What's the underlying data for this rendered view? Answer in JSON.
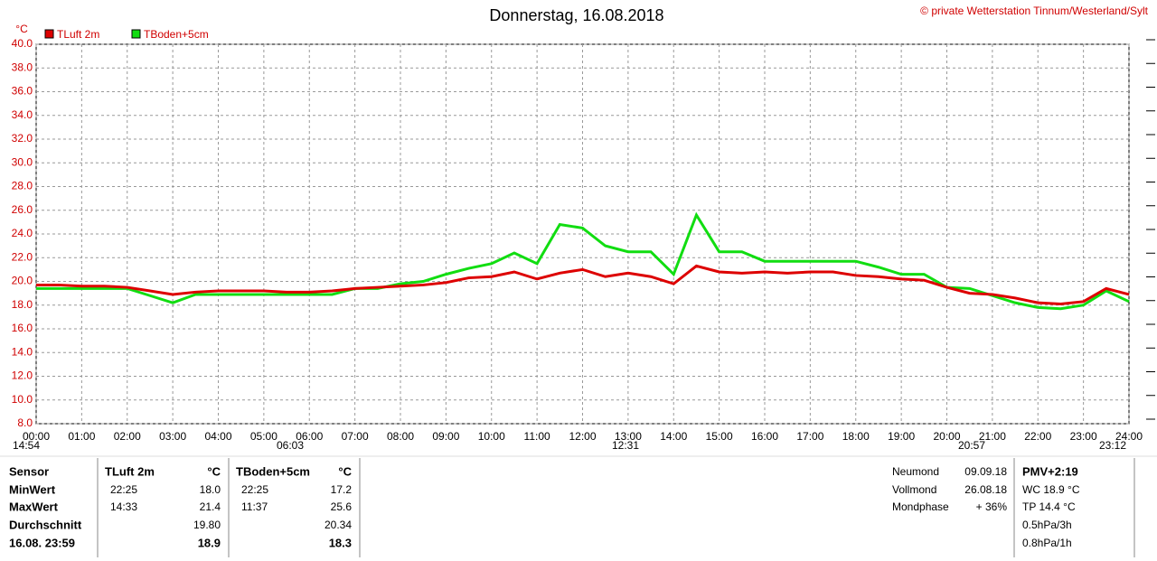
{
  "chart_data": {
    "type": "line",
    "title": "Donnerstag, 16.08.2018",
    "copyright": "© private Wetterstation Tinnum/Westerland/Sylt",
    "y_label": "°C",
    "x": [
      0,
      0.5,
      1,
      1.5,
      2,
      2.5,
      3,
      3.5,
      4,
      4.5,
      5,
      5.5,
      6,
      6.5,
      7,
      7.5,
      8,
      8.5,
      9,
      9.5,
      10,
      10.5,
      11,
      11.5,
      12,
      12.5,
      13,
      13.5,
      14,
      14.5,
      15,
      15.5,
      16,
      16.5,
      17,
      17.5,
      18,
      18.5,
      19,
      19.5,
      20,
      20.5,
      21,
      21.5,
      22,
      22.5,
      23,
      23.5,
      24
    ],
    "series": [
      {
        "name": "TLuft 2m",
        "color": "#dd0000",
        "values": [
          19.7,
          19.7,
          19.6,
          19.6,
          19.5,
          19.2,
          18.9,
          19.1,
          19.2,
          19.2,
          19.2,
          19.1,
          19.1,
          19.2,
          19.4,
          19.5,
          19.6,
          19.7,
          19.9,
          20.3,
          20.4,
          20.8,
          20.2,
          20.7,
          21.0,
          20.4,
          20.7,
          20.4,
          19.8,
          21.3,
          20.8,
          20.7,
          20.8,
          20.7,
          20.8,
          20.8,
          20.5,
          20.4,
          20.2,
          20.1,
          19.5,
          19.0,
          18.9,
          18.6,
          18.2,
          18.1,
          18.3,
          19.4,
          18.9
        ]
      },
      {
        "name": "TBoden+5cm",
        "color": "#11dd11",
        "values": [
          19.4,
          19.4,
          19.4,
          19.4,
          19.4,
          18.8,
          18.2,
          18.9,
          18.9,
          18.9,
          18.9,
          18.9,
          18.9,
          18.9,
          19.4,
          19.4,
          19.8,
          20.0,
          20.6,
          21.1,
          21.5,
          22.4,
          21.5,
          24.8,
          24.5,
          23.0,
          22.5,
          22.5,
          20.6,
          25.6,
          22.5,
          22.5,
          21.7,
          21.7,
          21.7,
          21.7,
          21.7,
          21.2,
          20.6,
          20.6,
          19.5,
          19.4,
          18.8,
          18.2,
          17.8,
          17.7,
          18.0,
          19.2,
          18.3
        ]
      }
    ],
    "xlim": [
      0,
      24
    ],
    "xticks": [
      {
        "value": 0,
        "label": "00:00"
      },
      {
        "value": 1,
        "label": "01:00"
      },
      {
        "value": 2,
        "label": "02:00"
      },
      {
        "value": 3,
        "label": "03:00"
      },
      {
        "value": 4,
        "label": "04:00"
      },
      {
        "value": 5,
        "label": "05:00"
      },
      {
        "value": 6,
        "label": "06:00"
      },
      {
        "value": 7,
        "label": "07:00"
      },
      {
        "value": 8,
        "label": "08:00"
      },
      {
        "value": 9,
        "label": "09:00"
      },
      {
        "value": 10,
        "label": "10:00"
      },
      {
        "value": 11,
        "label": "11:00"
      },
      {
        "value": 12,
        "label": "12:00"
      },
      {
        "value": 13,
        "label": "13:00"
      },
      {
        "value": 14,
        "label": "14:00"
      },
      {
        "value": 15,
        "label": "15:00"
      },
      {
        "value": 16,
        "label": "16:00"
      },
      {
        "value": 17,
        "label": "17:00"
      },
      {
        "value": 18,
        "label": "18:00"
      },
      {
        "value": 19,
        "label": "19:00"
      },
      {
        "value": 20,
        "label": "20:00"
      },
      {
        "value": 21,
        "label": "21:00"
      },
      {
        "value": 22,
        "label": "22:00"
      },
      {
        "value": 23,
        "label": "23:00"
      },
      {
        "value": 24,
        "label": "24:00"
      }
    ],
    "ylim": [
      8,
      40
    ],
    "yticks": [
      {
        "value": 8,
        "label": "8.0"
      },
      {
        "value": 10,
        "label": "10.0"
      },
      {
        "value": 12,
        "label": "12.0"
      },
      {
        "value": 14,
        "label": "14.0"
      },
      {
        "value": 16,
        "label": "16.0"
      },
      {
        "value": 18,
        "label": "18.0"
      },
      {
        "value": 20,
        "label": "20.0"
      },
      {
        "value": 22,
        "label": "22.0"
      },
      {
        "value": 24,
        "label": "24.0"
      },
      {
        "value": 26,
        "label": "26.0"
      },
      {
        "value": 28,
        "label": "28.0"
      },
      {
        "value": 30,
        "label": "30.0"
      },
      {
        "value": 32,
        "label": "32.0"
      },
      {
        "value": 34,
        "label": "34.0"
      },
      {
        "value": 36,
        "label": "36.0"
      },
      {
        "value": 38,
        "label": "38.0"
      },
      {
        "value": 40,
        "label": "40.0"
      }
    ],
    "grid": true,
    "annotations": [
      "14:54",
      "06:03",
      "12:31",
      "20:57",
      "23:12"
    ]
  },
  "table": {
    "labels": [
      "Sensor",
      "MinWert",
      "MaxWert",
      "Durchschnitt",
      "16.08. 23:59"
    ],
    "sensors": [
      {
        "name": "TLuft 2m",
        "unit": "°C",
        "min_time": "22:25",
        "min": "18.0",
        "max_time": "14:33",
        "max": "21.4",
        "avg": "19.80",
        "current": "18.9"
      },
      {
        "name": "TBoden+5cm",
        "unit": "°C",
        "min_time": "22:25",
        "min": "17.2",
        "max_time": "11:37",
        "max": "25.6",
        "avg": "20.34",
        "current": "18.3"
      }
    ],
    "moon": [
      [
        "Neumond",
        "09.09.18"
      ],
      [
        "Vollmond",
        "26.08.18"
      ],
      [
        "Mondphase",
        "+ 36%"
      ]
    ],
    "extra": [
      "PMV+2:19",
      "WC 18.9 °C",
      "TP 14.4 °C",
      "0.5hPa/3h",
      "0.8hPa/1h"
    ]
  }
}
